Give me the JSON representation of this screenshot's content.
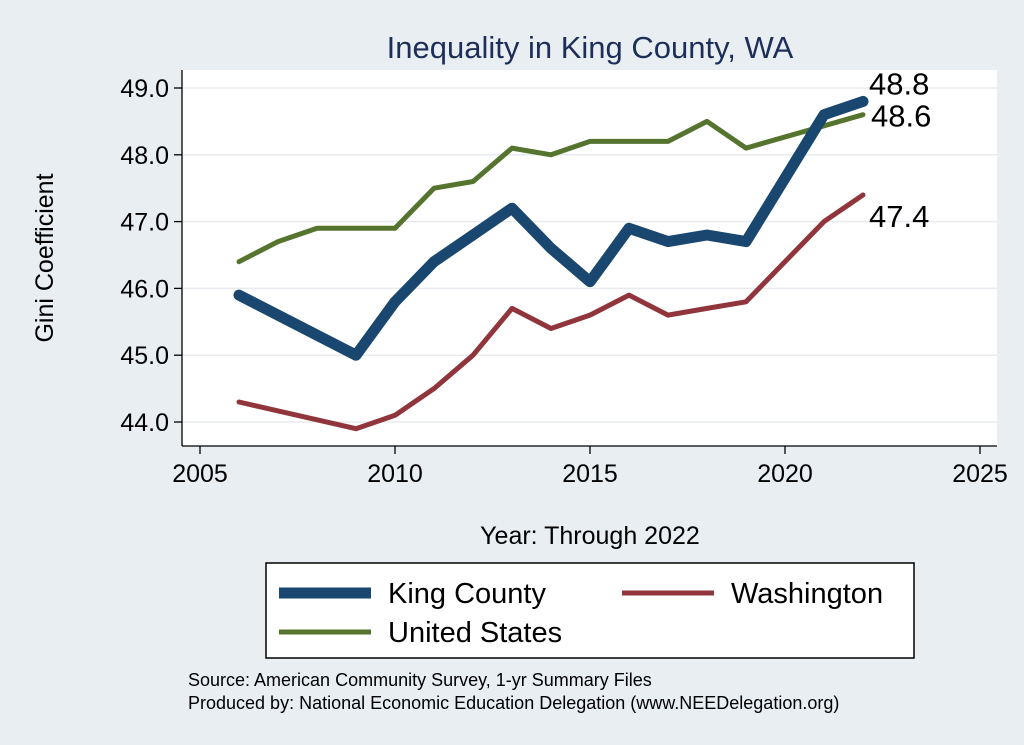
{
  "chart_data": {
    "type": "line",
    "title": "Inequality in King County, WA",
    "xlabel": "Year: Through 2022",
    "ylabel": "Gini Coefficient",
    "xlim": [
      2005,
      2025
    ],
    "ylim": [
      44.0,
      49.0
    ],
    "x_ticks": [
      "2005",
      "2010",
      "2015",
      "2020",
      "2025"
    ],
    "y_ticks": [
      "44.0",
      "45.0",
      "46.0",
      "47.0",
      "48.0",
      "49.0"
    ],
    "grid": true,
    "legend_position": "bottom",
    "series": [
      {
        "name": "King County",
        "color": "#1a476f",
        "x": [
          2006,
          2009,
          2010,
          2011,
          2012,
          2013,
          2014,
          2015,
          2016,
          2017,
          2018,
          2019,
          2021,
          2022
        ],
        "y": [
          45.9,
          45.0,
          45.8,
          46.4,
          46.8,
          47.2,
          46.6,
          46.1,
          46.9,
          46.7,
          46.8,
          46.7,
          48.6,
          48.8
        ],
        "end_label": "48.8"
      },
      {
        "name": "Washington",
        "color": "#90353b",
        "x": [
          2006,
          2009,
          2010,
          2011,
          2012,
          2013,
          2014,
          2015,
          2016,
          2017,
          2018,
          2019,
          2021,
          2022
        ],
        "y": [
          44.3,
          43.9,
          44.1,
          44.5,
          45.0,
          45.7,
          45.4,
          45.6,
          45.9,
          45.6,
          45.7,
          45.8,
          47.0,
          47.4
        ],
        "end_label": "47.4"
      },
      {
        "name": "United States",
        "color": "#55752f",
        "x": [
          2006,
          2007,
          2008,
          2009,
          2010,
          2011,
          2012,
          2013,
          2014,
          2015,
          2016,
          2017,
          2018,
          2019,
          2022
        ],
        "y": [
          46.4,
          46.7,
          46.9,
          46.9,
          46.9,
          47.5,
          47.6,
          48.1,
          48.0,
          48.2,
          48.2,
          48.2,
          48.5,
          48.1,
          48.6
        ],
        "end_label": "48.6"
      }
    ],
    "notes": [
      "Source: American Community Survey, 1-yr Summary Files",
      "Produced by: National Economic Education Delegation (www.NEEDelegation.org)"
    ]
  }
}
